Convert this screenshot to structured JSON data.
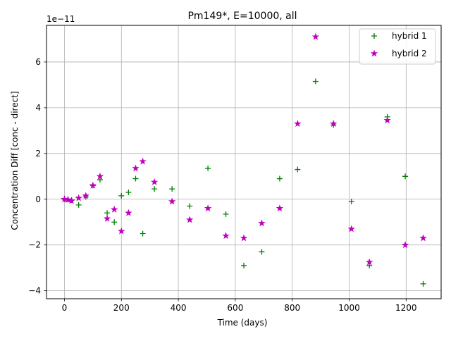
{
  "chart_data": {
    "type": "scatter",
    "title": "Pm149*, E=10000, all",
    "xlabel": "Time (days)",
    "ylabel": "Concentration Diff [conc - direct]",
    "y_offset_label": "1e−11",
    "xlim": [
      -63,
      1323
    ],
    "ylim": [
      -4.35,
      7.6
    ],
    "x_ticks": [
      0,
      200,
      400,
      600,
      800,
      1000,
      1200
    ],
    "y_ticks": [
      -4,
      -2,
      0,
      2,
      4,
      6
    ],
    "grid": true,
    "legend_position": "upper-right",
    "series": [
      {
        "name": "hybrid 1",
        "marker": "plus",
        "color": "#008000",
        "points": [
          [
            0,
            0.0
          ],
          [
            12.5,
            -0.02
          ],
          [
            25,
            -0.04
          ],
          [
            50,
            -0.25
          ],
          [
            75,
            0.1
          ],
          [
            100,
            0.6
          ],
          [
            125,
            0.85
          ],
          [
            150,
            -0.6
          ],
          [
            175,
            -1.0
          ],
          [
            200,
            0.15
          ],
          [
            225,
            0.3
          ],
          [
            250,
            0.9
          ],
          [
            275,
            -1.5
          ],
          [
            316,
            0.45
          ],
          [
            378,
            0.45
          ],
          [
            440,
            -0.3
          ],
          [
            504,
            1.35
          ],
          [
            567,
            -0.65
          ],
          [
            630,
            -2.9
          ],
          [
            693,
            -2.3
          ],
          [
            756,
            0.9
          ],
          [
            819,
            1.3
          ],
          [
            882,
            5.15
          ],
          [
            945,
            3.25
          ],
          [
            1008,
            -0.1
          ],
          [
            1071,
            -2.9
          ],
          [
            1134,
            3.6
          ],
          [
            1197,
            1.0
          ],
          [
            1260,
            -3.7
          ]
        ]
      },
      {
        "name": "hybrid 2",
        "marker": "star",
        "color": "#bf00bf",
        "points": [
          [
            0,
            0.0
          ],
          [
            12.5,
            -0.02
          ],
          [
            25,
            -0.07
          ],
          [
            50,
            0.05
          ],
          [
            75,
            0.15
          ],
          [
            100,
            0.6
          ],
          [
            125,
            1.0
          ],
          [
            150,
            -0.85
          ],
          [
            175,
            -0.45
          ],
          [
            200,
            -1.4
          ],
          [
            225,
            -0.6
          ],
          [
            250,
            1.35
          ],
          [
            275,
            1.65
          ],
          [
            316,
            0.75
          ],
          [
            378,
            -0.1
          ],
          [
            440,
            -0.9
          ],
          [
            504,
            -0.4
          ],
          [
            567,
            -1.6
          ],
          [
            630,
            -1.7
          ],
          [
            693,
            -1.05
          ],
          [
            756,
            -0.4
          ],
          [
            819,
            3.3
          ],
          [
            882,
            7.1
          ],
          [
            945,
            3.3
          ],
          [
            1008,
            -1.3
          ],
          [
            1071,
            -2.75
          ],
          [
            1134,
            3.45
          ],
          [
            1197,
            -2.0
          ],
          [
            1260,
            -1.7
          ]
        ]
      }
    ]
  }
}
